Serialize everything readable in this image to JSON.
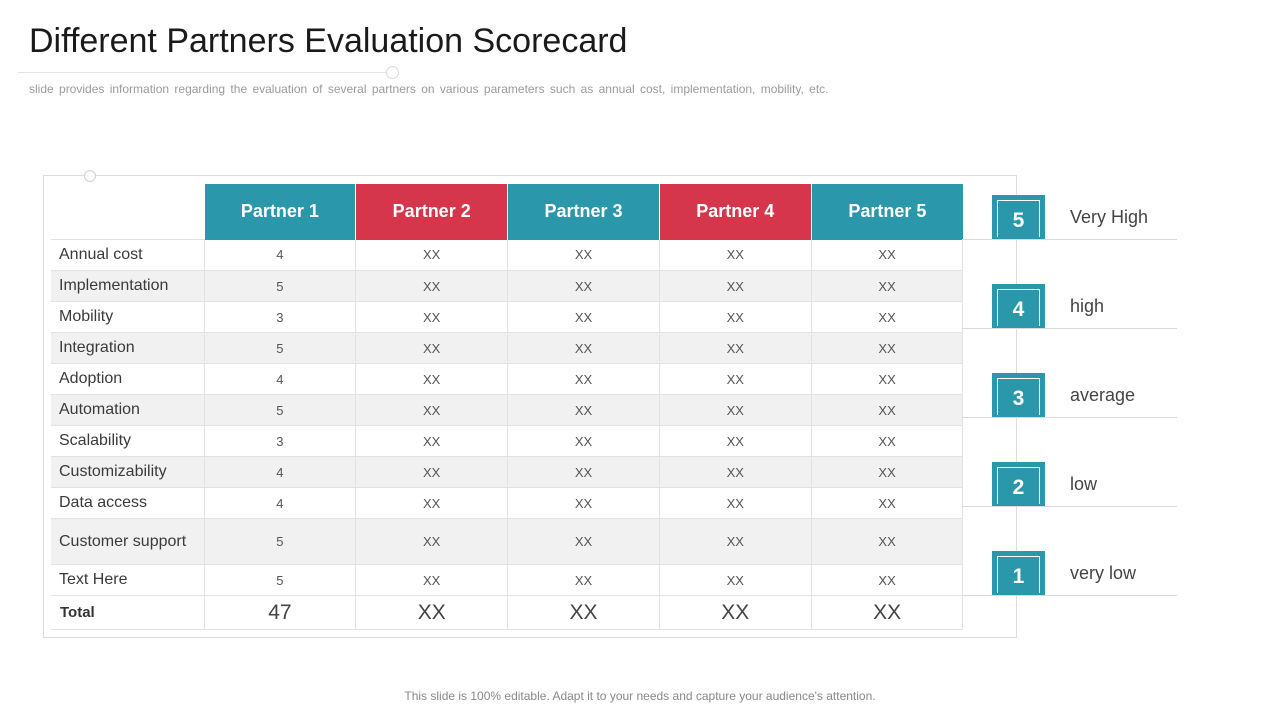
{
  "slide": {
    "title": "Different Partners Evaluation Scorecard",
    "subtitle": "slide provides information regarding the evaluation of several partners on various parameters such as annual cost, implementation, mobility, etc.",
    "footer": "This slide is 100% editable. Adapt it to your needs and capture your audience's attention."
  },
  "table": {
    "partners": [
      "Partner 1",
      "Partner 2",
      "Partner 3",
      "Partner 4",
      "Partner 5"
    ],
    "partner_colors": [
      "#2b97aa",
      "#d5364b",
      "#2b97aa",
      "#d5364b",
      "#2b97aa"
    ],
    "rows": [
      {
        "label": "Annual cost",
        "values": [
          "4",
          "XX",
          "XX",
          "XX",
          "XX"
        ]
      },
      {
        "label": "Implementation",
        "values": [
          "5",
          "XX",
          "XX",
          "XX",
          "XX"
        ]
      },
      {
        "label": "Mobility",
        "values": [
          "3",
          "XX",
          "XX",
          "XX",
          "XX"
        ]
      },
      {
        "label": "Integration",
        "values": [
          "5",
          "XX",
          "XX",
          "XX",
          "XX"
        ]
      },
      {
        "label": "Adoption",
        "values": [
          "4",
          "XX",
          "XX",
          "XX",
          "XX"
        ]
      },
      {
        "label": "Automation",
        "values": [
          "5",
          "XX",
          "XX",
          "XX",
          "XX"
        ]
      },
      {
        "label": "Scalability",
        "values": [
          "3",
          "XX",
          "XX",
          "XX",
          "XX"
        ]
      },
      {
        "label": "Customizability",
        "values": [
          "4",
          "XX",
          "XX",
          "XX",
          "XX"
        ]
      },
      {
        "label": "Data access",
        "values": [
          "4",
          "XX",
          "XX",
          "XX",
          "XX"
        ]
      },
      {
        "label": "Customer support",
        "values": [
          "5",
          "XX",
          "XX",
          "XX",
          "XX"
        ]
      },
      {
        "label": "Text Here",
        "values": [
          "5",
          "XX",
          "XX",
          "XX",
          "XX"
        ]
      }
    ],
    "total": {
      "label": "Total",
      "values": [
        "47",
        "XX",
        "XX",
        "XX",
        "XX"
      ]
    }
  },
  "legend": [
    {
      "score": "5",
      "text": "Very High"
    },
    {
      "score": "4",
      "text": "high"
    },
    {
      "score": "3",
      "text": "average"
    },
    {
      "score": "2",
      "text": "low"
    },
    {
      "score": "1",
      "text": "very low"
    }
  ],
  "colors": {
    "teal": "#2b97aa",
    "red": "#d5364b"
  }
}
